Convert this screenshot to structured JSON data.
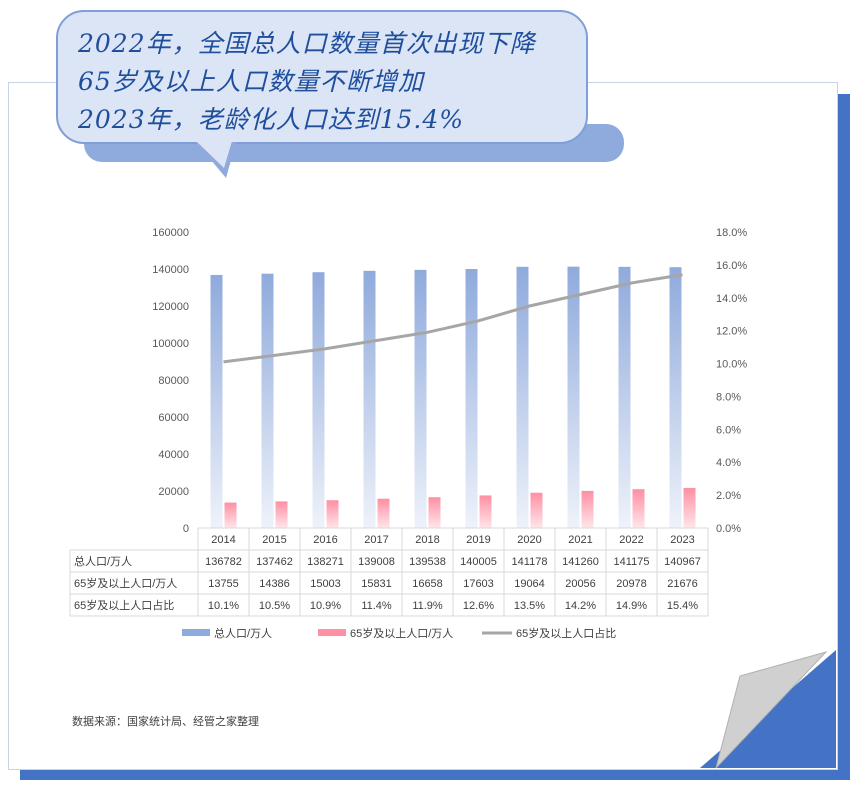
{
  "headline": {
    "line1": "2022年，全国总人口数量首次出现下降",
    "line2": "65岁及以上人口数量不断增加",
    "line3": "2023年，老龄化人口达到15.4%"
  },
  "chart_data": {
    "type": "bar",
    "categories": [
      "2014",
      "2015",
      "2016",
      "2017",
      "2018",
      "2019",
      "2020",
      "2021",
      "2022",
      "2023"
    ],
    "series": [
      {
        "name": "总人口/万人",
        "type": "bar",
        "axis": "left",
        "values": [
          136782,
          137462,
          138271,
          139008,
          139538,
          140005,
          141178,
          141260,
          141175,
          140967
        ],
        "color": "#8faadc"
      },
      {
        "name": "65岁及以上人口/万人",
        "type": "bar",
        "axis": "left",
        "values": [
          13755,
          14386,
          15003,
          15831,
          16658,
          17603,
          19064,
          20056,
          20978,
          21676
        ],
        "color": "#ff8fa3"
      },
      {
        "name": "65岁及以上人口占比",
        "type": "line",
        "axis": "right",
        "values": [
          10.1,
          10.5,
          10.9,
          11.4,
          11.9,
          12.6,
          13.5,
          14.2,
          14.9,
          15.4
        ],
        "color": "#a6a6a6"
      }
    ],
    "y_left": {
      "ylim": [
        0,
        160000
      ],
      "ticks": [
        "0",
        "20000",
        "40000",
        "60000",
        "80000",
        "100000",
        "120000",
        "140000",
        "160000"
      ]
    },
    "y_right": {
      "ylim": [
        0,
        18
      ],
      "ticks": [
        "0.0%",
        "2.0%",
        "4.0%",
        "6.0%",
        "8.0%",
        "10.0%",
        "12.0%",
        "14.0%",
        "16.0%",
        "18.0%"
      ]
    },
    "table": {
      "rows": [
        {
          "label": "总人口/万人",
          "cells": [
            "136782",
            "137462",
            "138271",
            "139008",
            "139538",
            "140005",
            "141178",
            "141260",
            "141175",
            "140967"
          ]
        },
        {
          "label": "65岁及以上人口/万人",
          "cells": [
            "13755",
            "14386",
            "15003",
            "15831",
            "16658",
            "17603",
            "19064",
            "20056",
            "20978",
            "21676"
          ]
        },
        {
          "label": "65岁及以上人口占比",
          "cells": [
            "10.1%",
            "10.5%",
            "10.9%",
            "11.4%",
            "11.9%",
            "12.6%",
            "13.5%",
            "14.2%",
            "14.9%",
            "15.4%"
          ]
        }
      ]
    },
    "legend_position": "bottom",
    "grid": false
  },
  "source": "数据来源：国家统计局、经管之家整理",
  "colors": {
    "accent_blue": "#4472c4",
    "bubble": "#dbe5f5",
    "headline_text": "#1f4e9c"
  }
}
